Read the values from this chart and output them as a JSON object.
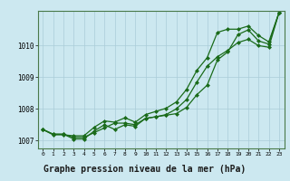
{
  "background_color": "#cce8f0",
  "plot_bg_color": "#cce8f0",
  "line_color": "#1a6b1a",
  "marker": "D",
  "markersize": 2.0,
  "linewidth": 0.9,
  "title": "Graphe pression niveau de la mer (hPa)",
  "title_fontsize": 7.0,
  "xlim": [
    -0.5,
    23.5
  ],
  "ylim": [
    1006.75,
    1011.1
  ],
  "yticks": [
    1007,
    1008,
    1009,
    1010
  ],
  "xticks": [
    0,
    1,
    2,
    3,
    4,
    5,
    6,
    7,
    8,
    9,
    10,
    11,
    12,
    13,
    14,
    15,
    16,
    17,
    18,
    19,
    20,
    21,
    22,
    23
  ],
  "grid_color": "#aaccd8",
  "series": [
    [
      1007.35,
      1007.2,
      1007.2,
      1007.1,
      1007.1,
      1007.25,
      1007.4,
      1007.55,
      1007.55,
      1007.5,
      1007.7,
      1007.75,
      1007.8,
      1007.85,
      1008.05,
      1008.45,
      1008.75,
      1009.55,
      1009.8,
      1010.35,
      1010.5,
      1010.15,
      1010.05,
      1011.05
    ],
    [
      1007.35,
      1007.2,
      1007.2,
      1007.05,
      1007.05,
      1007.3,
      1007.5,
      1007.35,
      1007.5,
      1007.45,
      1007.7,
      1007.75,
      1007.82,
      1008.0,
      1008.3,
      1008.85,
      1009.35,
      1009.65,
      1009.85,
      1010.1,
      1010.2,
      1010.0,
      1009.95,
      1011.05
    ],
    [
      1007.35,
      1007.18,
      1007.18,
      1007.15,
      1007.15,
      1007.42,
      1007.62,
      1007.58,
      1007.72,
      1007.58,
      1007.82,
      1007.92,
      1008.02,
      1008.22,
      1008.62,
      1009.22,
      1009.62,
      1010.42,
      1010.52,
      1010.52,
      1010.62,
      1010.32,
      1010.12,
      1011.05
    ]
  ]
}
